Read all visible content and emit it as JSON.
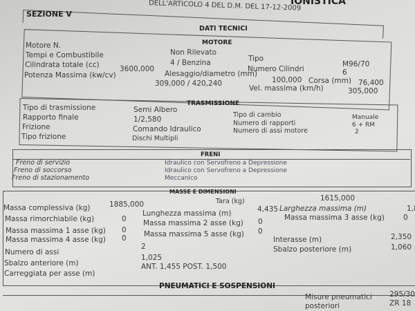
{
  "header": {
    "decree": "DELL'ARTICOLO 4 DEL D.M. DEL 17-12-2009",
    "title_fragment": "IONISTICA"
  },
  "section": "SEZIONE V",
  "dati_tecnici": "DATI TECNICI",
  "motore": {
    "title": "MOTORE",
    "motore_n_label": "Motore N.",
    "motore_n_value": "Non Rilevato",
    "tempi_label": "Tempi e Combustibile",
    "tempi_value": "4 / Benzina",
    "cilindrata_label": "Cilindrata totale (cc)",
    "cilindrata_value": "3600,000",
    "potenza_label": "Potenza Massima (kw/cv)",
    "potenza_value": "309,000 / 420,240",
    "alesaggio_label": "Alesaggio/diametro (mm)",
    "alesaggio_value": "100,000",
    "tipo_label": "Tipo",
    "tipo_value": "M96/70",
    "cilindri_label": "Numero Cilindri",
    "cilindri_value": "6",
    "corsa_label": "Corsa (mm)",
    "corsa_value": "76,400",
    "vel_label": "Vel. massima (km/h)",
    "vel_value": "305,000"
  },
  "trasmissione": {
    "title": "TRASMISSIONE",
    "tipo_label": "Tipo di trasmissione",
    "tipo_value": "Semi Albero",
    "rapporto_label": "Rapporto finale",
    "rapporto_value": "1/2,580",
    "frizione_label": "Frizione",
    "frizione_value": "Comando Idraulico",
    "tipo_frizione_label": "Tipo frizione",
    "tipo_frizione_value": "Dischi Multipli",
    "cambio_label": "Tipo di cambio",
    "cambio_value": "Manuale",
    "rapporti_label": "Numero di rapporti",
    "rapporti_value": "6 + RM",
    "assi_motore_label": "Numero di assi motore",
    "assi_motore_value": "2"
  },
  "freni": {
    "title": "FRENI",
    "servizio_label": "Freno di servizio",
    "servizio_value": "Idraulico con Servofreno a Depressione",
    "soccorso_label": "Freno di soccorso",
    "soccorso_value": "Idraulico con Servofreno a Depressione",
    "stazionamento_label": "Freno di stazionamento",
    "stazionamento_value": "Meccanico"
  },
  "masse": {
    "title": "MASSE E DIMENSIONI",
    "complessiva_label": "Massa complessiva (kg)",
    "complessiva_value": "1885,000",
    "tara_label": "Tara (kg)",
    "tara_value": "1615,000",
    "rimorchiabile_label": "Massa rimorchiabile (kg)",
    "rimorchiabile_value": "0",
    "lunghezza_label": "Lunghezza massima (m)",
    "lunghezza_value": "4,435",
    "larghezza_label": "Larghezza massima (m)",
    "larghezza_value": "1,8",
    "asse1_label": "Massa massima 1 asse (kg)",
    "asse1_value": "0",
    "asse2_label": "Massa massima 2 asse (kg)",
    "asse2_value": "0",
    "asse3_label": "Massa massima 3 asse (kg)",
    "asse3_value": "0",
    "asse4_label": "Massa massima 4 asse (kg)",
    "asse4_value": "0",
    "asse5_label": "Massa massima 5 asse (kg)",
    "asse5_value": "0",
    "assi_label": "Numero di assi",
    "assi_value": "2",
    "interasse_label": "Interasse (m)",
    "interasse_value": "2,350",
    "sbalzo_ant_label": "Sbalzo anteriore (m)",
    "sbalzo_ant_value": "1,025",
    "sbalzo_post_label": "Sbalzo posteriore (m)",
    "sbalzo_post_value": "1,060",
    "carreggiata_label": "Carreggiata per asse (m)",
    "carreggiata_value": "ANT. 1,455 POST. 1,500"
  },
  "pneumatici": {
    "title": "PNEUMATICI E SOSPENSIONI",
    "misure_post_label_1": "Misure pneumatici",
    "misure_post_label_2": "posteriori",
    "misure_post_value_1": "295/30",
    "misure_post_value_2": "ZR 18"
  }
}
